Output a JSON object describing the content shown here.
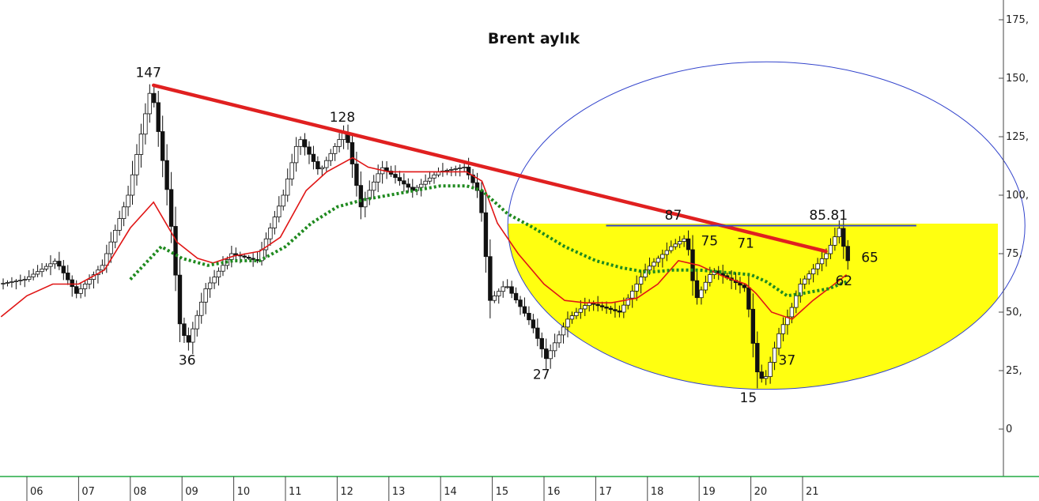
{
  "chart_data": {
    "type": "candlestick",
    "title": "Brent aylık",
    "ylim": [
      -20,
      180
    ],
    "y_ticks": [
      {
        "value": 175,
        "label": "175,"
      },
      {
        "value": 150,
        "label": "150,"
      },
      {
        "value": 125,
        "label": "125,"
      },
      {
        "value": 100,
        "label": "100,"
      },
      {
        "value": 75,
        "label": "75,"
      },
      {
        "value": 50,
        "label": "50,"
      },
      {
        "value": 25,
        "label": "25,"
      },
      {
        "value": 0,
        "label": "0"
      }
    ],
    "x_ticks": [
      {
        "label": "06",
        "x": 2006.0
      },
      {
        "label": "07",
        "x": 2007.0
      },
      {
        "label": "08",
        "x": 2008.0
      },
      {
        "label": "09",
        "x": 2009.0
      },
      {
        "label": "10",
        "x": 2010.0
      },
      {
        "label": "11",
        "x": 2011.0
      },
      {
        "label": "12",
        "x": 2012.0
      },
      {
        "label": "13",
        "x": 2013.0
      },
      {
        "label": "14",
        "x": 2014.0
      },
      {
        "label": "15",
        "x": 2015.0
      },
      {
        "label": "16",
        "x": 2016.0
      },
      {
        "label": "17",
        "x": 2017.0
      },
      {
        "label": "18",
        "x": 2018.0
      },
      {
        "label": "19",
        "x": 2019.0
      },
      {
        "label": "20",
        "x": 2020.0
      },
      {
        "label": "21",
        "x": 2021.0
      }
    ],
    "grid": false,
    "price_path": [
      [
        2005.5,
        62
      ],
      [
        2006.0,
        64
      ],
      [
        2006.6,
        72
      ],
      [
        2007.0,
        58
      ],
      [
        2007.5,
        70
      ],
      [
        2008.0,
        100
      ],
      [
        2008.45,
        147
      ],
      [
        2008.8,
        95
      ],
      [
        2009.0,
        45
      ],
      [
        2009.15,
        36
      ],
      [
        2009.5,
        60
      ],
      [
        2010.0,
        75
      ],
      [
        2010.5,
        72
      ],
      [
        2011.0,
        100
      ],
      [
        2011.3,
        125
      ],
      [
        2011.7,
        110
      ],
      [
        2012.2,
        128
      ],
      [
        2012.5,
        95
      ],
      [
        2012.9,
        112
      ],
      [
        2013.5,
        102
      ],
      [
        2014.0,
        110
      ],
      [
        2014.5,
        112
      ],
      [
        2014.8,
        100
      ],
      [
        2015.0,
        55
      ],
      [
        2015.3,
        62
      ],
      [
        2015.8,
        45
      ],
      [
        2016.08,
        30
      ],
      [
        2016.5,
        47
      ],
      [
        2016.9,
        54
      ],
      [
        2017.5,
        50
      ],
      [
        2018.0,
        68
      ],
      [
        2018.5,
        78
      ],
      [
        2018.8,
        82
      ],
      [
        2018.97,
        55
      ],
      [
        2019.3,
        68
      ],
      [
        2019.8,
        62
      ],
      [
        2019.95,
        60
      ],
      [
        2020.15,
        25
      ],
      [
        2020.3,
        20
      ],
      [
        2020.6,
        42
      ],
      [
        2020.8,
        50
      ],
      [
        2021.0,
        62
      ],
      [
        2021.5,
        75
      ],
      [
        2021.75,
        85.81
      ],
      [
        2021.9,
        72
      ]
    ],
    "trendline": {
      "from": [
        2008.45,
        147
      ],
      "to": [
        2021.45,
        76
      ]
    },
    "resistance_line": {
      "value": 87,
      "x_from": 2017.2,
      "x_to": 2023.2
    },
    "moving_averages": [
      {
        "style": "solid",
        "color": "#e01616",
        "points": [
          [
            2005.5,
            48
          ],
          [
            2006.0,
            57
          ],
          [
            2006.5,
            62
          ],
          [
            2007.0,
            62
          ],
          [
            2007.5,
            68
          ],
          [
            2008.0,
            86
          ],
          [
            2008.45,
            97
          ],
          [
            2008.9,
            80
          ],
          [
            2009.3,
            73
          ],
          [
            2009.6,
            71
          ],
          [
            2010.0,
            74
          ],
          [
            2010.5,
            76
          ],
          [
            2010.9,
            82
          ],
          [
            2011.4,
            102
          ],
          [
            2011.8,
            110
          ],
          [
            2012.3,
            116
          ],
          [
            2012.6,
            112
          ],
          [
            2013.0,
            110
          ],
          [
            2013.5,
            110
          ],
          [
            2014.0,
            110
          ],
          [
            2014.5,
            110
          ],
          [
            2014.8,
            106
          ],
          [
            2015.1,
            88
          ],
          [
            2015.5,
            75
          ],
          [
            2016.0,
            62
          ],
          [
            2016.4,
            55
          ],
          [
            2016.8,
            54
          ],
          [
            2017.3,
            54
          ],
          [
            2017.8,
            56
          ],
          [
            2018.2,
            62
          ],
          [
            2018.6,
            72
          ],
          [
            2019.0,
            70
          ],
          [
            2019.5,
            65
          ],
          [
            2019.9,
            62
          ],
          [
            2020.1,
            58
          ],
          [
            2020.4,
            50
          ],
          [
            2020.8,
            47
          ],
          [
            2021.2,
            55
          ],
          [
            2021.5,
            60
          ],
          [
            2021.85,
            66
          ]
        ]
      },
      {
        "style": "dotted",
        "color": "#1f8a1f",
        "points": [
          [
            2008.0,
            64
          ],
          [
            2008.6,
            78
          ],
          [
            2009.0,
            73
          ],
          [
            2009.5,
            70
          ],
          [
            2010.0,
            72
          ],
          [
            2010.5,
            72
          ],
          [
            2011.0,
            78
          ],
          [
            2011.5,
            88
          ],
          [
            2012.0,
            95
          ],
          [
            2012.5,
            98
          ],
          [
            2013.0,
            100
          ],
          [
            2013.5,
            102
          ],
          [
            2014.0,
            104
          ],
          [
            2014.5,
            104
          ],
          [
            2014.8,
            102
          ],
          [
            2015.3,
            92
          ],
          [
            2015.8,
            86
          ],
          [
            2016.4,
            78
          ],
          [
            2017.0,
            72
          ],
          [
            2017.5,
            69
          ],
          [
            2018.0,
            67
          ],
          [
            2018.5,
            68
          ],
          [
            2019.0,
            68
          ],
          [
            2019.5,
            67
          ],
          [
            2020.0,
            66
          ],
          [
            2020.3,
            63
          ],
          [
            2020.7,
            57
          ],
          [
            2021.0,
            58
          ],
          [
            2021.5,
            60
          ],
          [
            2021.85,
            63
          ]
        ]
      }
    ],
    "annotations": [
      {
        "text": "147",
        "x": 2008.35,
        "y": 150.5
      },
      {
        "text": "36",
        "x": 2009.1,
        "y": 27.5
      },
      {
        "text": "128",
        "x": 2012.1,
        "y": 131.5
      },
      {
        "text": "27",
        "x": 2015.95,
        "y": 21.5
      },
      {
        "text": "87",
        "x": 2018.5,
        "y": 89.5
      },
      {
        "text": "75",
        "x": 2019.2,
        "y": 78.5
      },
      {
        "text": "71",
        "x": 2019.9,
        "y": 77.5
      },
      {
        "text": "85.81",
        "x": 2021.5,
        "y": 89.5
      },
      {
        "text": "65",
        "x": 2022.3,
        "y": 71.5
      },
      {
        "text": "62",
        "x": 2021.8,
        "y": 61.5
      },
      {
        "text": "37",
        "x": 2020.7,
        "y": 27.5
      },
      {
        "text": "15",
        "x": 2019.95,
        "y": 11.5
      }
    ],
    "highlight_circle": {
      "center_x": 2020.3,
      "center_y": 87,
      "radius_x": 5.0,
      "radius_y": 70,
      "fill": "#ffff10"
    },
    "colors": {
      "trendline": "#e02020",
      "resistance": "#3344cc",
      "circle_outline": "#3344cc",
      "candle": "#111111",
      "x_axis": "#22aa44"
    }
  }
}
